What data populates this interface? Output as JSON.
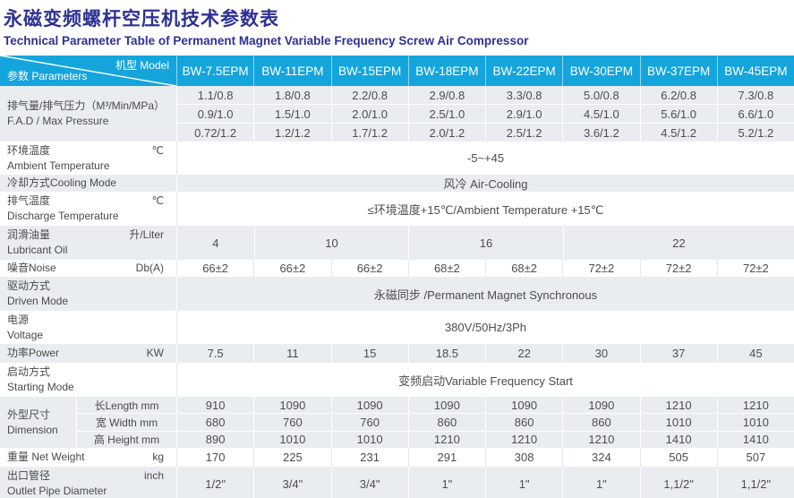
{
  "page": {
    "title_cn": "永磁变频螺杆空压机技术参数表",
    "title_en": "Technical Parameter Table of Permanent Magnet Variable Frequency Screw Air Compressor"
  },
  "colors": {
    "accent": "#15a5dd",
    "title_blue": "#2e3192",
    "band_gray": "#e9edf0"
  },
  "table": {
    "corner": {
      "model": "机型 Model",
      "param": "参数 Parameters"
    },
    "models": [
      "BW-7.5EPM",
      "BW-11EPM",
      "BW-15EPM",
      "BW-18EPM",
      "BW-22EPM",
      "BW-30EPM",
      "BW-37EPM",
      "BW-45EPM"
    ],
    "rows": {
      "fad": {
        "label_cn": "排气量/排气压力（M³/Min/MPa）",
        "label_en": "F.A.D / Max Pressure",
        "p08": [
          "1.1/0.8",
          "1.8/0.8",
          "2.2/0.8",
          "2.9/0.8",
          "3.3/0.8",
          "5.0/0.8",
          "6.2/0.8",
          "7.3/0.8"
        ],
        "p10": [
          "0.9/1.0",
          "1.5/1.0",
          "2.0/1.0",
          "2.5/1.0",
          "2.9/1.0",
          "4.5/1.0",
          "5.6/1.0",
          "6.6/1.0"
        ],
        "p12": [
          "0.72/1.2",
          "1.2/1.2",
          "1.7/1.2",
          "2.0/1.2",
          "2.5/1.2",
          "3.6/1.2",
          "4.5/1.2",
          "5.2/1.2"
        ]
      },
      "ambient": {
        "label_cn": "环境温度",
        "label_en": "Ambient Temperature",
        "unit": "℃",
        "value": "-5~+45"
      },
      "cooling": {
        "label": "冷却方式Cooling Mode",
        "value": "风冷 Air-Cooling"
      },
      "discharge": {
        "label_cn": "排气温度",
        "label_en": "Discharge Temperature",
        "unit": "℃",
        "value": "≤环境温度+15℃/Ambient Temperature +15℃"
      },
      "lubricant": {
        "label_cn": "润滑油量",
        "label_en": "Lubricant Oil",
        "unit": "升/Liter",
        "values": [
          "4",
          "10",
          "16",
          "22"
        ]
      },
      "noise": {
        "label": "噪音Noise",
        "unit": "Db(A)",
        "values": [
          "66±2",
          "66±2",
          "66±2",
          "68±2",
          "68±2",
          "72±2",
          "72±2",
          "72±2"
        ]
      },
      "driven": {
        "label_cn": "驱动方式",
        "label_en": "Driven Mode",
        "value": "永磁同步 /Permanent Magnet Synchronous"
      },
      "voltage": {
        "label_cn": "电源",
        "label_en": "Voltage",
        "value": "380V/50Hz/3Ph"
      },
      "power": {
        "label": "功率Power",
        "unit": "KW",
        "values": [
          "7.5",
          "11",
          "15",
          "18.5",
          "22",
          "30",
          "37",
          "45"
        ]
      },
      "starting": {
        "label_cn": "启动方式",
        "label_en": "Starting Mode",
        "value": "变频启动Variable Frequency Start"
      },
      "dimension": {
        "label_cn": "外型尺寸",
        "label_en": "Dimension",
        "sub": [
          {
            "label": "长Length mm",
            "values": [
              "910",
              "1090",
              "1090",
              "1090",
              "1090",
              "1090",
              "1210",
              "1210"
            ]
          },
          {
            "label": "宽 Width mm",
            "values": [
              "680",
              "760",
              "760",
              "860",
              "860",
              "860",
              "1010",
              "1010"
            ]
          },
          {
            "label": "高 Height mm",
            "values": [
              "890",
              "1010",
              "1010",
              "1210",
              "1210",
              "1210",
              "1410",
              "1410"
            ]
          }
        ]
      },
      "weight": {
        "label": "重量 Net Weight",
        "unit": "kg",
        "values": [
          "170",
          "225",
          "231",
          "291",
          "308",
          "324",
          "505",
          "507"
        ]
      },
      "outlet": {
        "label_cn": "出口管径",
        "label_en": "Outlet Pipe Diameter",
        "unit": "inch",
        "values": [
          "1/2\"",
          "3/4\"",
          "3/4\"",
          "1\"",
          "1\"",
          "1\"",
          "1,1/2\"",
          "1,1/2\""
        ]
      }
    }
  }
}
